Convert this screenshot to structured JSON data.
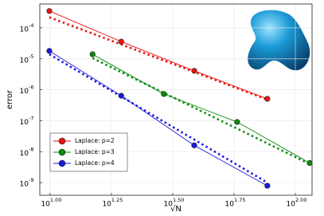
{
  "chart_data": {
    "type": "line",
    "x_label": "√N",
    "y_label": "error",
    "xscale": "log",
    "yscale": "log",
    "grid": true,
    "legend": "bottom-left",
    "xlim": [
      9.08,
      117
    ],
    "ylim": [
      3.9e-10,
      0.00059
    ],
    "xticks": [
      {
        "value": 10,
        "label": "10",
        "exponent": "1.00"
      },
      {
        "value": 17.78,
        "label": "10",
        "exponent": "1.25"
      },
      {
        "value": 31.62,
        "label": "10",
        "exponent": "1.50"
      },
      {
        "value": 56.23,
        "label": "10",
        "exponent": "1.75"
      },
      {
        "value": 100,
        "label": "10",
        "exponent": "2.00"
      }
    ],
    "yticks": [
      {
        "value": 1e-09,
        "label": "10",
        "exponent": "-9"
      },
      {
        "value": 1e-08,
        "label": "10",
        "exponent": "-8"
      },
      {
        "value": 1e-07,
        "label": "10",
        "exponent": "-7"
      },
      {
        "value": 1e-06,
        "label": "10",
        "exponent": "-6"
      },
      {
        "value": 1e-05,
        "label": "10",
        "exponent": "-5"
      },
      {
        "value": 0.0001,
        "label": "10",
        "exponent": "-4"
      }
    ],
    "series": [
      {
        "name": "Laplace: p=2",
        "color": "#e8130f",
        "x": [
          9.93,
          19.5,
          38.7,
          76.9
        ],
        "values": [
          0.00035,
          3.6e-05,
          4.1e-06,
          5.1e-07
        ],
        "ref_x": [
          9.93,
          76.9
        ],
        "ref_values": [
          0.00022,
          4.8e-07
        ]
      },
      {
        "name": "Laplace: p=3",
        "color": "#0b8a0b",
        "x": [
          14.9,
          29.1,
          57.9,
          114.4
        ],
        "values": [
          1.4e-05,
          7.3e-07,
          9.1e-08,
          4.3e-09
        ],
        "ref_x": [
          14.9,
          114.4
        ],
        "ref_values": [
          1.05e-05,
          4e-09
        ]
      },
      {
        "name": "Laplace: p=4",
        "color": "#1a1adb",
        "x": [
          9.93,
          19.5,
          38.7,
          76.9
        ],
        "values": [
          1.8e-05,
          6.4e-07,
          1.6e-08,
          7.9e-10
        ],
        "ref_x": [
          9.93,
          76.9
        ],
        "ref_values": [
          1.4e-05,
          1e-09
        ]
      }
    ]
  }
}
